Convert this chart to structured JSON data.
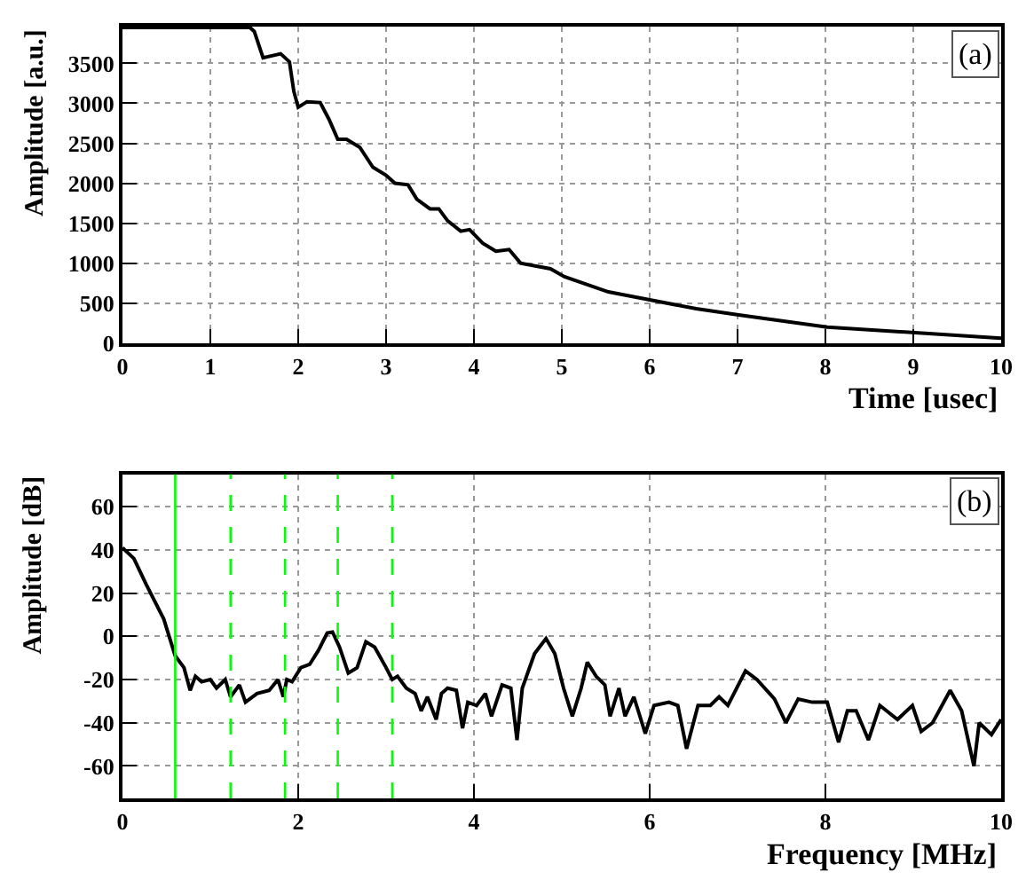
{
  "chart_data": [
    {
      "type": "line",
      "xlabel": "Time [usec]",
      "ylabel": "Amplitude [a.u.]",
      "annotations": [
        "(a)"
      ],
      "xlim": [
        0,
        10
      ],
      "ylim": [
        0,
        3960
      ],
      "xticks": [
        0,
        1,
        2,
        3,
        4,
        5,
        6,
        7,
        8,
        9,
        10
      ],
      "yticks": [
        0,
        500,
        1000,
        1500,
        2000,
        2500,
        3000,
        3500
      ],
      "grid": true,
      "series": [
        {
          "color": "#000000",
          "x": [
            0,
            1.45,
            1.5,
            1.6,
            1.8,
            1.9,
            1.95,
            2.0,
            2.1,
            2.25,
            2.35,
            2.45,
            2.55,
            2.7,
            2.85,
            3.0,
            3.1,
            3.25,
            3.35,
            3.5,
            3.6,
            3.7,
            3.85,
            3.95,
            4.1,
            4.25,
            4.4,
            4.53,
            4.87,
            5.03,
            5.53,
            6.0,
            6.53,
            7.03,
            8.02,
            9.02,
            10
          ],
          "values": [
            3950,
            3950,
            3900,
            3570,
            3620,
            3520,
            3150,
            2950,
            3020,
            3010,
            2800,
            2550,
            2550,
            2450,
            2200,
            2100,
            2000,
            1980,
            1800,
            1680,
            1680,
            1530,
            1400,
            1420,
            1250,
            1150,
            1170,
            1000,
            930,
            830,
            640,
            540,
            430,
            350,
            200,
            130,
            60
          ]
        }
      ]
    },
    {
      "type": "line",
      "xlabel": "Frequency [MHz]",
      "ylabel": "Amplitude [dB]",
      "annotations": [
        "(b)"
      ],
      "xlim": [
        0,
        10
      ],
      "ylim": [
        -75,
        75
      ],
      "xticks": [
        0,
        2,
        4,
        6,
        8,
        10
      ],
      "yticks": [
        -60,
        -40,
        -20,
        0,
        20,
        40,
        60
      ],
      "grid": true,
      "ref_lines": [
        {
          "axis": "x",
          "value": 0.6,
          "color": "#00ff00",
          "line_style": "solid"
        },
        {
          "axis": "x",
          "value": 1.23,
          "color": "#00ff00",
          "line_style": "dashed"
        },
        {
          "axis": "x",
          "value": 1.85,
          "color": "#00ff00",
          "line_style": "dashed"
        },
        {
          "axis": "x",
          "value": 2.45,
          "color": "#00ff00",
          "line_style": "dashed"
        },
        {
          "axis": "x",
          "value": 3.07,
          "color": "#00ff00",
          "line_style": "dashed"
        }
      ],
      "series": [
        {
          "color": "#000000",
          "x": [
            0,
            0.13,
            0.27,
            0.47,
            0.6,
            0.7,
            0.77,
            0.83,
            0.9,
            1.0,
            1.07,
            1.17,
            1.23,
            1.33,
            1.4,
            1.53,
            1.67,
            1.77,
            1.83,
            1.87,
            1.93,
            2.03,
            2.13,
            2.23,
            2.33,
            2.39,
            2.47,
            2.57,
            2.67,
            2.77,
            2.87,
            3.0,
            3.07,
            3.13,
            3.23,
            3.33,
            3.4,
            3.47,
            3.57,
            3.63,
            3.7,
            3.8,
            3.87,
            3.93,
            4.03,
            4.13,
            4.2,
            4.32,
            4.42,
            4.49,
            4.55,
            4.62,
            4.69,
            4.82,
            4.92,
            5.02,
            5.12,
            5.22,
            5.29,
            5.39,
            5.49,
            5.55,
            5.65,
            5.72,
            5.82,
            5.95,
            6.05,
            6.22,
            6.32,
            6.42,
            6.55,
            6.69,
            6.79,
            6.89,
            7.09,
            7.22,
            7.42,
            7.55,
            7.69,
            7.85,
            8.02,
            8.15,
            8.25,
            8.35,
            8.49,
            8.62,
            8.82,
            8.99,
            9.09,
            9.22,
            9.42,
            9.55,
            9.69,
            9.75,
            9.89,
            10.0
          ],
          "values": [
            41,
            36,
            24,
            8,
            -9,
            -14.5,
            -25,
            -18.5,
            -21,
            -20,
            -24,
            -20,
            -28,
            -22.5,
            -30.5,
            -26.5,
            -25,
            -20,
            -28,
            -20,
            -21,
            -14.5,
            -13,
            -6.5,
            1.5,
            2,
            -5,
            -17,
            -14.5,
            -2.5,
            -5,
            -14.5,
            -20,
            -18.5,
            -24,
            -26.5,
            -34.5,
            -28,
            -38.5,
            -26.5,
            -24,
            -25,
            -42.5,
            -30.5,
            -32,
            -26.5,
            -37,
            -22.5,
            -24,
            -48,
            -24,
            -16,
            -8,
            -1,
            -8,
            -24,
            -37,
            -24,
            -12,
            -18.5,
            -22.5,
            -37,
            -24,
            -37,
            -28,
            -45,
            -32,
            -30.5,
            -32,
            -52,
            -32,
            -32,
            -28,
            -32,
            -16,
            -20,
            -29,
            -40,
            -29,
            -30.5,
            -30.5,
            -49,
            -34.5,
            -34.5,
            -48,
            -32,
            -38.5,
            -32,
            -44,
            -40,
            -25,
            -34.5,
            -60,
            -40,
            -45.5,
            -38.5
          ]
        }
      ]
    }
  ]
}
